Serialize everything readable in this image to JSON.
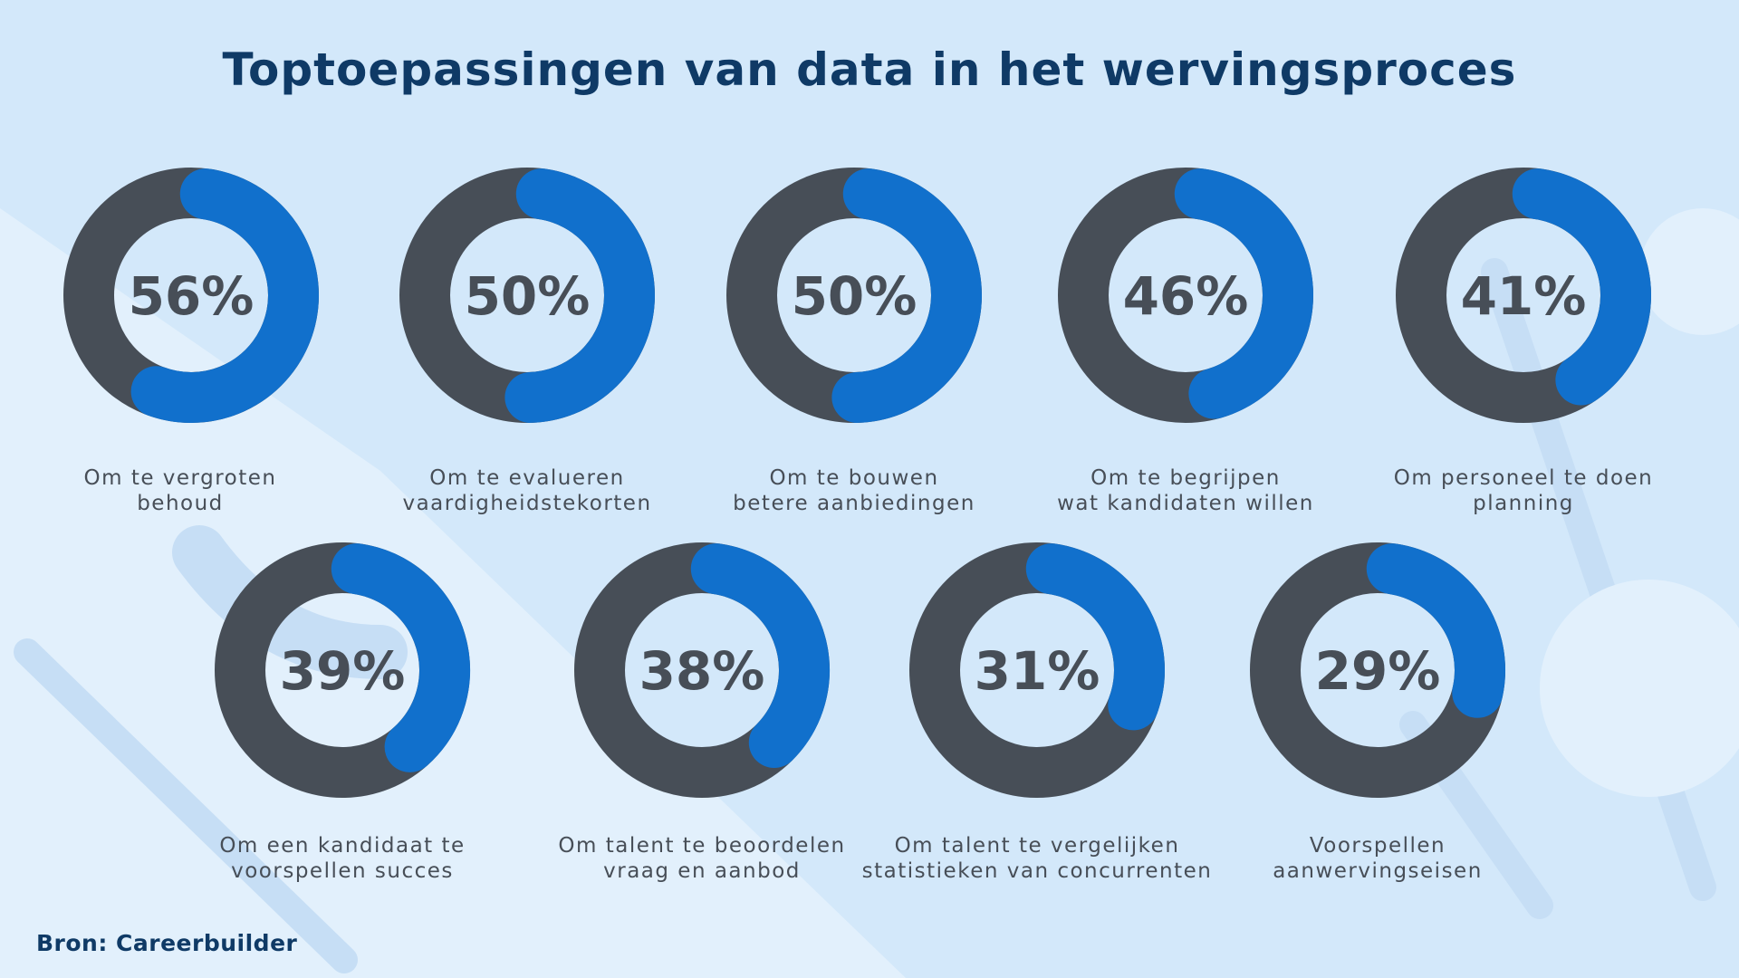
{
  "title": "Toptoepassingen van data in het wervingsproces",
  "source": "Bron: Careerbuilder",
  "colors": {
    "accent": "#1170cc",
    "remainder": "#474e57",
    "background": "#d3e8fa",
    "title": "#0f3a66"
  },
  "chart_data": {
    "type": "donut",
    "title": "Toptoepassingen van data in het wervingsproces",
    "unit": "%",
    "items": [
      {
        "value": 56,
        "label": "56%",
        "caption": [
          "Om te vergroten",
          "behoud"
        ]
      },
      {
        "value": 50,
        "label": "50%",
        "caption": [
          "Om te evalueren",
          "vaardigheidstekorten"
        ]
      },
      {
        "value": 50,
        "label": "50%",
        "caption": [
          "Om te bouwen",
          "betere aanbiedingen"
        ]
      },
      {
        "value": 46,
        "label": "46%",
        "caption": [
          "Om te begrijpen",
          "wat kandidaten willen"
        ]
      },
      {
        "value": 41,
        "label": "41%",
        "caption": [
          "Om personeel te doen",
          "planning"
        ]
      },
      {
        "value": 39,
        "label": "39%",
        "caption": [
          "Om een kandidaat te",
          "voorspellen succes"
        ]
      },
      {
        "value": 38,
        "label": "38%",
        "caption": [
          "Om talent te beoordelen",
          "vraag en aanbod"
        ]
      },
      {
        "value": 31,
        "label": "31%",
        "caption": [
          "Om talent te vergelijken",
          "statistieken van concurrenten"
        ]
      },
      {
        "value": 29,
        "label": "29%",
        "caption": [
          "Voorspellen",
          "aanwervingseisen"
        ]
      }
    ]
  }
}
